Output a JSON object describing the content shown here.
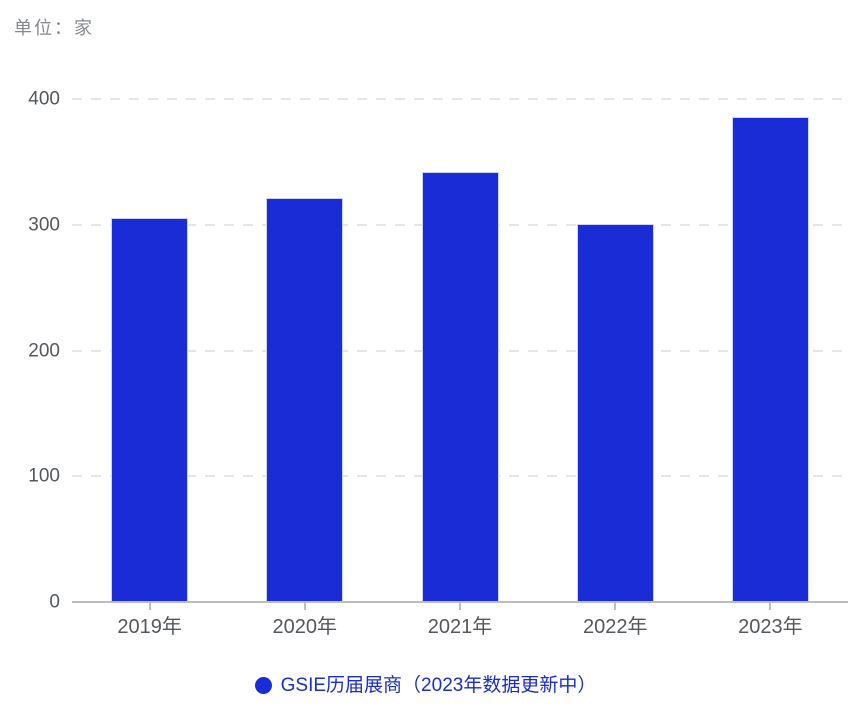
{
  "unit_label": "单位：家",
  "chart_data": {
    "type": "bar",
    "title": "",
    "categories": [
      "2019年",
      "2020年",
      "2021年",
      "2022年",
      "2023年"
    ],
    "values": [
      305,
      321,
      342,
      301,
      386
    ],
    "series": [
      {
        "name": "GSIE历届展商（2023年数据更新中）",
        "values": [
          305,
          321,
          342,
          301,
          386
        ]
      }
    ],
    "xlabel": "",
    "ylabel": "单位：家",
    "ylim": [
      0,
      400
    ],
    "yticks": [
      0,
      100,
      200,
      300,
      400
    ],
    "grid": "horizontal-dashed",
    "legend_position": "bottom-center"
  },
  "legend": {
    "label": "GSIE历届展商（2023年数据更新中）"
  },
  "colors": {
    "bar": "#1A2CD6",
    "legend": "#1A2CD6",
    "grid_line": "#E5E5E5",
    "axis_line": "#BDBDBD",
    "tick_label": "#54585D",
    "unit_label": "#85888D",
    "background": "#FFFFFF"
  }
}
